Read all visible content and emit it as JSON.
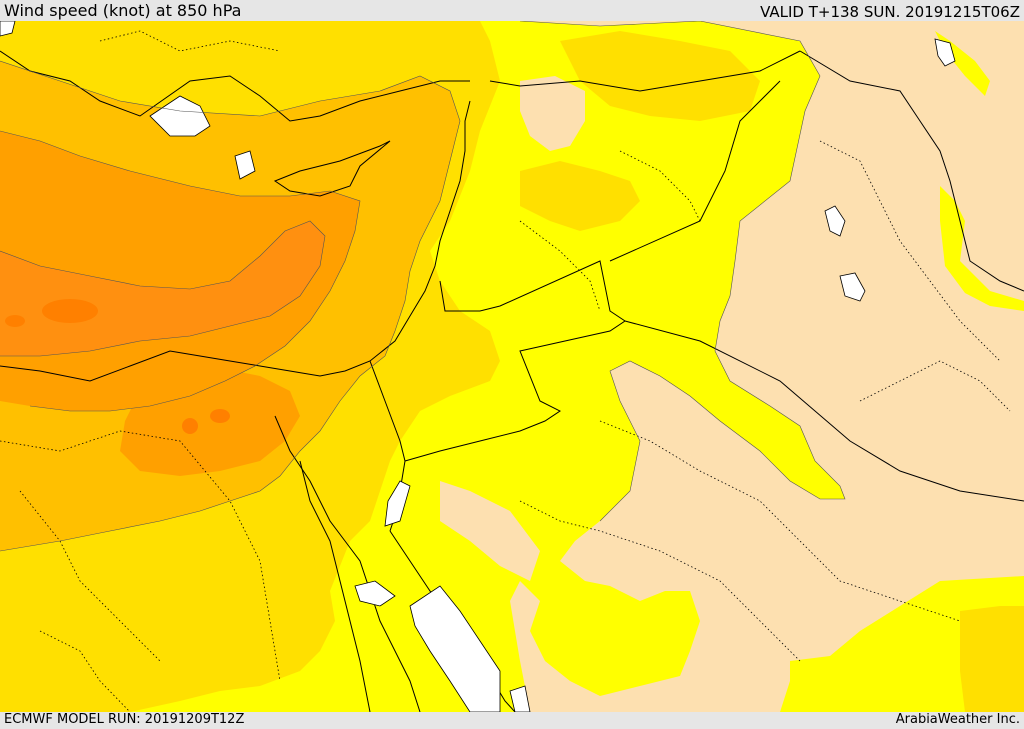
{
  "header": {
    "title": "Wind speed (knot) at 850 hPa",
    "valid": "VALID T+138 SUN. 20191215T06Z"
  },
  "footer": {
    "model_run": "ECMWF MODEL RUN: 20191209T12Z",
    "credit": "ArabiaWeather Inc."
  },
  "colors": {
    "water": "#ffffff",
    "calm_beige": "#fde0b0",
    "yellow": "#ffff00",
    "gold": "#ffe000",
    "light_orange": "#ffc000",
    "orange": "#ffa000",
    "dark_orange": "#ff8000",
    "borders": "#000000"
  }
}
